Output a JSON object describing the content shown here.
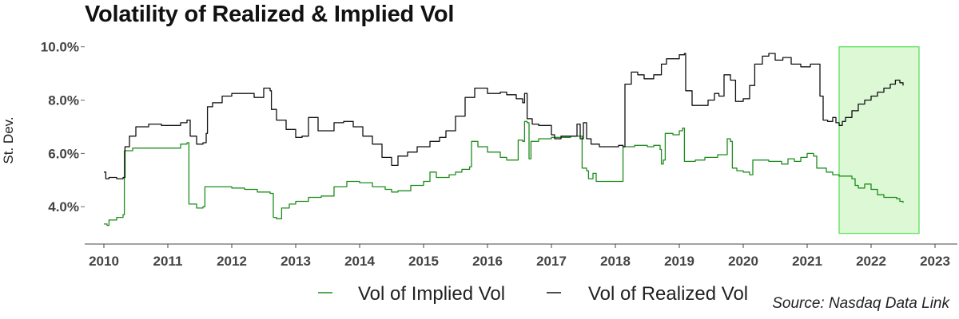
{
  "chart_data": {
    "type": "line",
    "title": "Volatility of Realized & Implied Vol",
    "ylabel": "St. Dev.",
    "xlabel": "",
    "xlim": [
      2009.7,
      2023.35
    ],
    "ylim": [
      0.026,
      0.1032
    ],
    "y_ticks": [
      0.04,
      0.06,
      0.08,
      0.1
    ],
    "y_tick_labels": [
      "4.0%",
      "6.0%",
      "8.0%",
      "10.0%"
    ],
    "x_ticks": [
      2010,
      2011,
      2012,
      2013,
      2014,
      2015,
      2016,
      2017,
      2018,
      2019,
      2020,
      2021,
      2022,
      2023
    ],
    "x_tick_labels": [
      "2010",
      "2011",
      "2012",
      "2013",
      "2014",
      "2015",
      "2016",
      "2017",
      "2018",
      "2019",
      "2020",
      "2021",
      "2022",
      "2023"
    ],
    "grid": false,
    "legend_position": "bottom-center",
    "highlight": {
      "x": [
        2021.5,
        2022.75
      ],
      "y": [
        0.03,
        0.1
      ],
      "fill": "#dcf8d4",
      "stroke": "#4fe04f"
    },
    "series": [
      {
        "name": "Vol of Implied Vol",
        "color": "#1e8c1e",
        "points": [
          [
            2010.0,
            0.0335
          ],
          [
            2010.05,
            0.033
          ],
          [
            2010.08,
            0.035
          ],
          [
            2010.2,
            0.036
          ],
          [
            2010.3,
            0.037
          ],
          [
            2010.32,
            0.061
          ],
          [
            2010.45,
            0.062
          ],
          [
            2010.6,
            0.062
          ],
          [
            2010.9,
            0.062
          ],
          [
            2011.2,
            0.0635
          ],
          [
            2011.3,
            0.064
          ],
          [
            2011.33,
            0.041
          ],
          [
            2011.45,
            0.0395
          ],
          [
            2011.55,
            0.04
          ],
          [
            2011.58,
            0.0475
          ],
          [
            2011.8,
            0.0475
          ],
          [
            2012.0,
            0.047
          ],
          [
            2012.2,
            0.0465
          ],
          [
            2012.4,
            0.0455
          ],
          [
            2012.6,
            0.045
          ],
          [
            2012.65,
            0.036
          ],
          [
            2012.7,
            0.0355
          ],
          [
            2012.78,
            0.0395
          ],
          [
            2012.9,
            0.041
          ],
          [
            2013.0,
            0.042
          ],
          [
            2013.2,
            0.0435
          ],
          [
            2013.4,
            0.044
          ],
          [
            2013.6,
            0.0475
          ],
          [
            2013.8,
            0.0495
          ],
          [
            2014.0,
            0.049
          ],
          [
            2014.2,
            0.0475
          ],
          [
            2014.4,
            0.0465
          ],
          [
            2014.5,
            0.0455
          ],
          [
            2014.6,
            0.046
          ],
          [
            2014.8,
            0.048
          ],
          [
            2015.0,
            0.0495
          ],
          [
            2015.1,
            0.053
          ],
          [
            2015.2,
            0.051
          ],
          [
            2015.4,
            0.052
          ],
          [
            2015.5,
            0.053
          ],
          [
            2015.6,
            0.054
          ],
          [
            2015.72,
            0.055
          ],
          [
            2015.75,
            0.0645
          ],
          [
            2015.85,
            0.0625
          ],
          [
            2016.0,
            0.0605
          ],
          [
            2016.2,
            0.0585
          ],
          [
            2016.3,
            0.0575
          ],
          [
            2016.45,
            0.0575
          ],
          [
            2016.48,
            0.065
          ],
          [
            2016.55,
            0.0645
          ],
          [
            2016.58,
            0.072
          ],
          [
            2016.62,
            0.0715
          ],
          [
            2016.65,
            0.058
          ],
          [
            2016.68,
            0.0645
          ],
          [
            2016.8,
            0.0655
          ],
          [
            2017.0,
            0.066
          ],
          [
            2017.3,
            0.0665
          ],
          [
            2017.45,
            0.0665
          ],
          [
            2017.48,
            0.0545
          ],
          [
            2017.55,
            0.0535
          ],
          [
            2017.58,
            0.0505
          ],
          [
            2017.65,
            0.0525
          ],
          [
            2017.7,
            0.0495
          ],
          [
            2017.8,
            0.0495
          ],
          [
            2018.1,
            0.0495
          ],
          [
            2018.12,
            0.0625
          ],
          [
            2018.3,
            0.063
          ],
          [
            2018.5,
            0.0625
          ],
          [
            2018.6,
            0.063
          ],
          [
            2018.7,
            0.0615
          ],
          [
            2018.72,
            0.056
          ],
          [
            2018.75,
            0.0575
          ],
          [
            2018.78,
            0.0675
          ],
          [
            2018.9,
            0.067
          ],
          [
            2019.0,
            0.0685
          ],
          [
            2019.05,
            0.0695
          ],
          [
            2019.08,
            0.057
          ],
          [
            2019.25,
            0.0575
          ],
          [
            2019.4,
            0.0585
          ],
          [
            2019.6,
            0.0595
          ],
          [
            2019.72,
            0.0595
          ],
          [
            2019.75,
            0.0655
          ],
          [
            2019.8,
            0.0645
          ],
          [
            2019.83,
            0.0545
          ],
          [
            2019.9,
            0.0535
          ],
          [
            2020.0,
            0.053
          ],
          [
            2020.1,
            0.052
          ],
          [
            2020.15,
            0.0575
          ],
          [
            2020.4,
            0.057
          ],
          [
            2020.6,
            0.056
          ],
          [
            2020.7,
            0.058
          ],
          [
            2020.8,
            0.057
          ],
          [
            2020.9,
            0.0585
          ],
          [
            2021.0,
            0.06
          ],
          [
            2021.1,
            0.059
          ],
          [
            2021.15,
            0.0545
          ],
          [
            2021.3,
            0.053
          ],
          [
            2021.4,
            0.052
          ],
          [
            2021.5,
            0.0515
          ],
          [
            2021.6,
            0.0515
          ],
          [
            2021.7,
            0.0505
          ],
          [
            2021.75,
            0.048
          ],
          [
            2021.8,
            0.047
          ],
          [
            2021.9,
            0.0485
          ],
          [
            2022.0,
            0.0465
          ],
          [
            2022.1,
            0.0445
          ],
          [
            2022.2,
            0.0435
          ],
          [
            2022.3,
            0.0435
          ],
          [
            2022.4,
            0.043
          ],
          [
            2022.45,
            0.042
          ],
          [
            2022.5,
            0.0415
          ]
        ]
      },
      {
        "name": "Vol of Realized Vol",
        "color": "#111111",
        "points": [
          [
            2010.0,
            0.053
          ],
          [
            2010.03,
            0.0505
          ],
          [
            2010.08,
            0.051
          ],
          [
            2010.2,
            0.0505
          ],
          [
            2010.3,
            0.051
          ],
          [
            2010.33,
            0.0625
          ],
          [
            2010.4,
            0.0665
          ],
          [
            2010.5,
            0.07
          ],
          [
            2010.7,
            0.071
          ],
          [
            2010.9,
            0.0705
          ],
          [
            2011.1,
            0.0705
          ],
          [
            2011.2,
            0.0715
          ],
          [
            2011.3,
            0.0725
          ],
          [
            2011.35,
            0.0665
          ],
          [
            2011.45,
            0.0635
          ],
          [
            2011.55,
            0.064
          ],
          [
            2011.6,
            0.0675
          ],
          [
            2011.62,
            0.0775
          ],
          [
            2011.7,
            0.079
          ],
          [
            2011.85,
            0.0815
          ],
          [
            2012.0,
            0.0825
          ],
          [
            2012.2,
            0.0825
          ],
          [
            2012.35,
            0.081
          ],
          [
            2012.5,
            0.0845
          ],
          [
            2012.6,
            0.0835
          ],
          [
            2012.62,
            0.0765
          ],
          [
            2012.7,
            0.0725
          ],
          [
            2012.85,
            0.069
          ],
          [
            2013.0,
            0.066
          ],
          [
            2013.1,
            0.0665
          ],
          [
            2013.2,
            0.0735
          ],
          [
            2013.35,
            0.0685
          ],
          [
            2013.5,
            0.0685
          ],
          [
            2013.6,
            0.0715
          ],
          [
            2013.75,
            0.072
          ],
          [
            2013.9,
            0.07
          ],
          [
            2014.05,
            0.0665
          ],
          [
            2014.2,
            0.0635
          ],
          [
            2014.35,
            0.0585
          ],
          [
            2014.5,
            0.0555
          ],
          [
            2014.6,
            0.059
          ],
          [
            2014.75,
            0.0605
          ],
          [
            2014.9,
            0.0625
          ],
          [
            2015.0,
            0.0625
          ],
          [
            2015.1,
            0.0645
          ],
          [
            2015.25,
            0.066
          ],
          [
            2015.35,
            0.0685
          ],
          [
            2015.5,
            0.074
          ],
          [
            2015.65,
            0.081
          ],
          [
            2015.8,
            0.0845
          ],
          [
            2015.9,
            0.0845
          ],
          [
            2016.0,
            0.0825
          ],
          [
            2016.2,
            0.083
          ],
          [
            2016.3,
            0.082
          ],
          [
            2016.45,
            0.0805
          ],
          [
            2016.55,
            0.079
          ],
          [
            2016.58,
            0.0825
          ],
          [
            2016.62,
            0.073
          ],
          [
            2016.7,
            0.071
          ],
          [
            2016.8,
            0.0705
          ],
          [
            2017.0,
            0.067
          ],
          [
            2017.05,
            0.0655
          ],
          [
            2017.15,
            0.0665
          ],
          [
            2017.3,
            0.0665
          ],
          [
            2017.4,
            0.071
          ],
          [
            2017.45,
            0.0655
          ],
          [
            2017.5,
            0.0715
          ],
          [
            2017.55,
            0.0655
          ],
          [
            2017.62,
            0.0635
          ],
          [
            2017.75,
            0.0625
          ],
          [
            2017.9,
            0.0625
          ],
          [
            2018.05,
            0.063
          ],
          [
            2018.12,
            0.0625
          ],
          [
            2018.15,
            0.086
          ],
          [
            2018.25,
            0.0905
          ],
          [
            2018.35,
            0.0895
          ],
          [
            2018.45,
            0.088
          ],
          [
            2018.6,
            0.0895
          ],
          [
            2018.72,
            0.0935
          ],
          [
            2018.8,
            0.0955
          ],
          [
            2018.9,
            0.0955
          ],
          [
            2019.0,
            0.097
          ],
          [
            2019.08,
            0.0975
          ],
          [
            2019.1,
            0.0835
          ],
          [
            2019.2,
            0.078
          ],
          [
            2019.35,
            0.078
          ],
          [
            2019.45,
            0.08
          ],
          [
            2019.55,
            0.0825
          ],
          [
            2019.62,
            0.0815
          ],
          [
            2019.7,
            0.0895
          ],
          [
            2019.8,
            0.0875
          ],
          [
            2019.88,
            0.0795
          ],
          [
            2020.0,
            0.0805
          ],
          [
            2020.1,
            0.0855
          ],
          [
            2020.18,
            0.0935
          ],
          [
            2020.3,
            0.0965
          ],
          [
            2020.4,
            0.0975
          ],
          [
            2020.5,
            0.095
          ],
          [
            2020.62,
            0.096
          ],
          [
            2020.75,
            0.0935
          ],
          [
            2020.9,
            0.0925
          ],
          [
            2021.0,
            0.0925
          ],
          [
            2021.05,
            0.0935
          ],
          [
            2021.1,
            0.0935
          ],
          [
            2021.2,
            0.0815
          ],
          [
            2021.25,
            0.0725
          ],
          [
            2021.32,
            0.072
          ],
          [
            2021.4,
            0.0735
          ],
          [
            2021.45,
            0.0715
          ],
          [
            2021.5,
            0.0705
          ],
          [
            2021.55,
            0.072
          ],
          [
            2021.6,
            0.0735
          ],
          [
            2021.7,
            0.076
          ],
          [
            2021.8,
            0.0785
          ],
          [
            2021.9,
            0.08
          ],
          [
            2022.0,
            0.0815
          ],
          [
            2022.1,
            0.083
          ],
          [
            2022.2,
            0.0845
          ],
          [
            2022.3,
            0.086
          ],
          [
            2022.38,
            0.0875
          ],
          [
            2022.45,
            0.0865
          ],
          [
            2022.5,
            0.0855
          ]
        ]
      }
    ],
    "source_note": "Source: Nasdaq Data Link"
  }
}
